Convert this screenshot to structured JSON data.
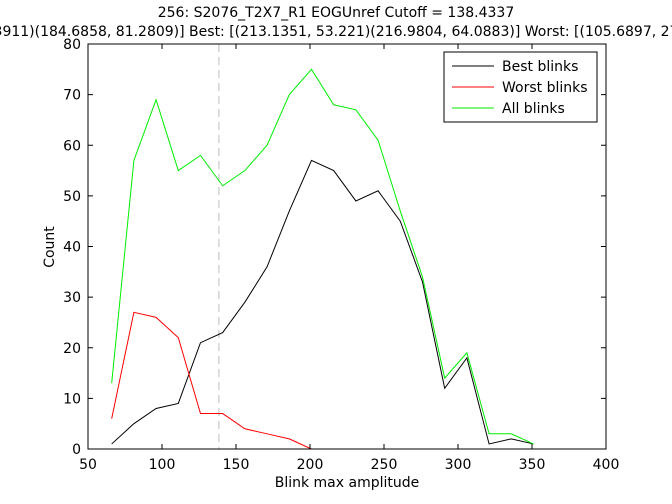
{
  "chart_data": {
    "type": "line",
    "title": "256: S2076_T2X7_R1 EOGUnref Cutoff = 138.4337",
    "subtitle": "3911)(184.6858, 81.2809)] Best: [(213.1351, 53.221)(216.9804, 64.0883)] Worst: [(105.6897, 27",
    "xlabel": "Blink max amplitude",
    "ylabel": "Count",
    "xlim": [
      50,
      400
    ],
    "ylim": [
      0,
      80
    ],
    "xticks": [
      50,
      100,
      150,
      200,
      250,
      300,
      350,
      400
    ],
    "yticks": [
      0,
      10,
      20,
      30,
      40,
      50,
      60,
      70,
      80
    ],
    "grid": false,
    "legend_position": "top-right",
    "cutoff": 138.4337,
    "series": [
      {
        "name": "Best blinks",
        "color": "#000000",
        "x": [
          66,
          81,
          96,
          111,
          126,
          141,
          156,
          171,
          186,
          201,
          216,
          231,
          246,
          261,
          276,
          291,
          306,
          321,
          336,
          351
        ],
        "y": [
          1,
          5,
          8,
          9,
          21,
          23,
          29,
          36,
          47,
          57,
          55,
          49,
          51,
          45,
          33,
          12,
          18,
          1,
          2,
          1
        ]
      },
      {
        "name": "Worst blinks",
        "color": "#ff0000",
        "x": [
          66,
          81,
          96,
          111,
          126,
          141,
          156,
          171,
          186,
          201
        ],
        "y": [
          6,
          27,
          26,
          22,
          7,
          7,
          4,
          3,
          2,
          0
        ]
      },
      {
        "name": "All blinks",
        "color": "#00ee00",
        "x": [
          66,
          81,
          96,
          111,
          126,
          141,
          156,
          171,
          186,
          201,
          216,
          231,
          246,
          261,
          276,
          291,
          306,
          321,
          336,
          351
        ],
        "y": [
          13,
          57,
          69,
          55,
          58,
          52,
          55,
          60,
          70,
          75,
          68,
          67,
          61,
          47,
          34,
          14,
          19,
          3,
          3,
          1
        ]
      }
    ]
  }
}
